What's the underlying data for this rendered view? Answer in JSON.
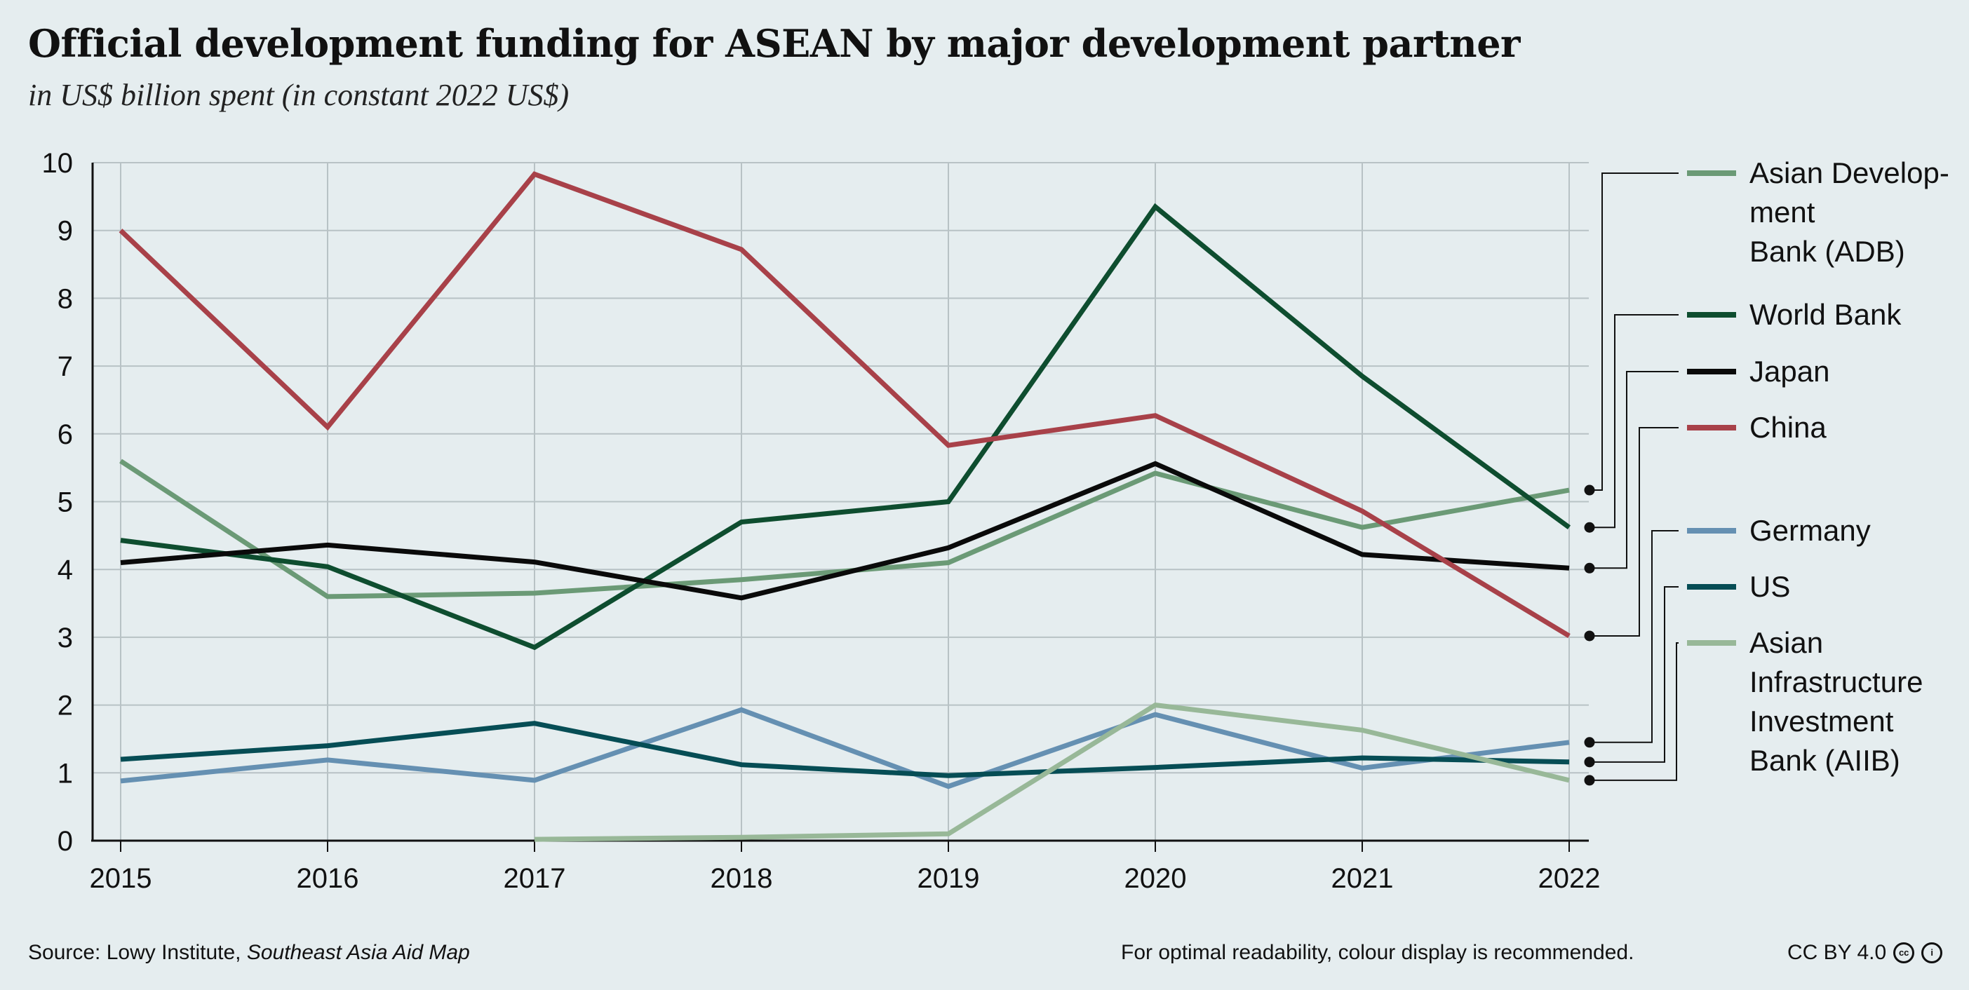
{
  "title": "Official development funding for ASEAN by major development partner",
  "subtitle": "in US$ billion spent (in constant 2022 US$)",
  "footer": {
    "source_prefix": "Source: Lowy Institute, ",
    "source_italic": "Southeast Asia Aid Map",
    "note": "For optimal readability, colour display is recommended.",
    "license": "CC BY 4.0",
    "cc_icon": "cc",
    "by_icon": "i"
  },
  "chart_data": {
    "type": "line",
    "title": "Official development funding for ASEAN by major development partner",
    "subtitle": "in US$ billion spent (in constant 2022 US$)",
    "xlabel": "",
    "ylabel": "",
    "x": [
      "2015",
      "2016",
      "2017",
      "2018",
      "2019",
      "2020",
      "2021",
      "2022"
    ],
    "ylim": [
      0,
      10
    ],
    "yticks": [
      "0",
      "1",
      "2",
      "3",
      "4",
      "5",
      "6",
      "7",
      "8",
      "9",
      "10"
    ],
    "grid": true,
    "legend_position": "right",
    "series": [
      {
        "name": "Asian Development Bank (ADB)",
        "label_lines": [
          "Asian Develop-",
          "ment",
          "Bank (ADB)"
        ],
        "color": "#6b9a76",
        "values": [
          5.6,
          3.6,
          3.65,
          3.85,
          4.1,
          5.42,
          4.62,
          5.17
        ]
      },
      {
        "name": "World Bank",
        "label_lines": [
          "World Bank"
        ],
        "color": "#0e4d2f",
        "values": [
          4.43,
          4.04,
          2.85,
          4.7,
          5.0,
          9.35,
          6.85,
          4.62
        ]
      },
      {
        "name": "Japan",
        "label_lines": [
          "Japan"
        ],
        "color": "#0a0a0a",
        "values": [
          4.1,
          4.36,
          4.11,
          3.58,
          4.32,
          5.56,
          4.22,
          4.02
        ]
      },
      {
        "name": "China",
        "label_lines": [
          "China"
        ],
        "color": "#a84149",
        "values": [
          9.0,
          6.1,
          9.83,
          8.72,
          5.83,
          6.27,
          4.86,
          3.02
        ]
      },
      {
        "name": "Germany",
        "label_lines": [
          "Germany"
        ],
        "color": "#6590b2",
        "values": [
          0.88,
          1.19,
          0.89,
          1.93,
          0.8,
          1.86,
          1.07,
          1.45
        ]
      },
      {
        "name": "US",
        "label_lines": [
          "US"
        ],
        "color": "#064d55",
        "values": [
          1.2,
          1.4,
          1.73,
          1.12,
          0.96,
          1.08,
          1.22,
          1.16
        ]
      },
      {
        "name": "Asian Infrastructure Investment Bank (AIIB)",
        "label_lines": [
          "Asian",
          "Infrastructure",
          "Investment",
          "Bank (AIIB)"
        ],
        "color": "#98b898",
        "values": [
          null,
          null,
          0.02,
          0.05,
          0.1,
          2.0,
          1.63,
          0.89
        ]
      }
    ]
  }
}
